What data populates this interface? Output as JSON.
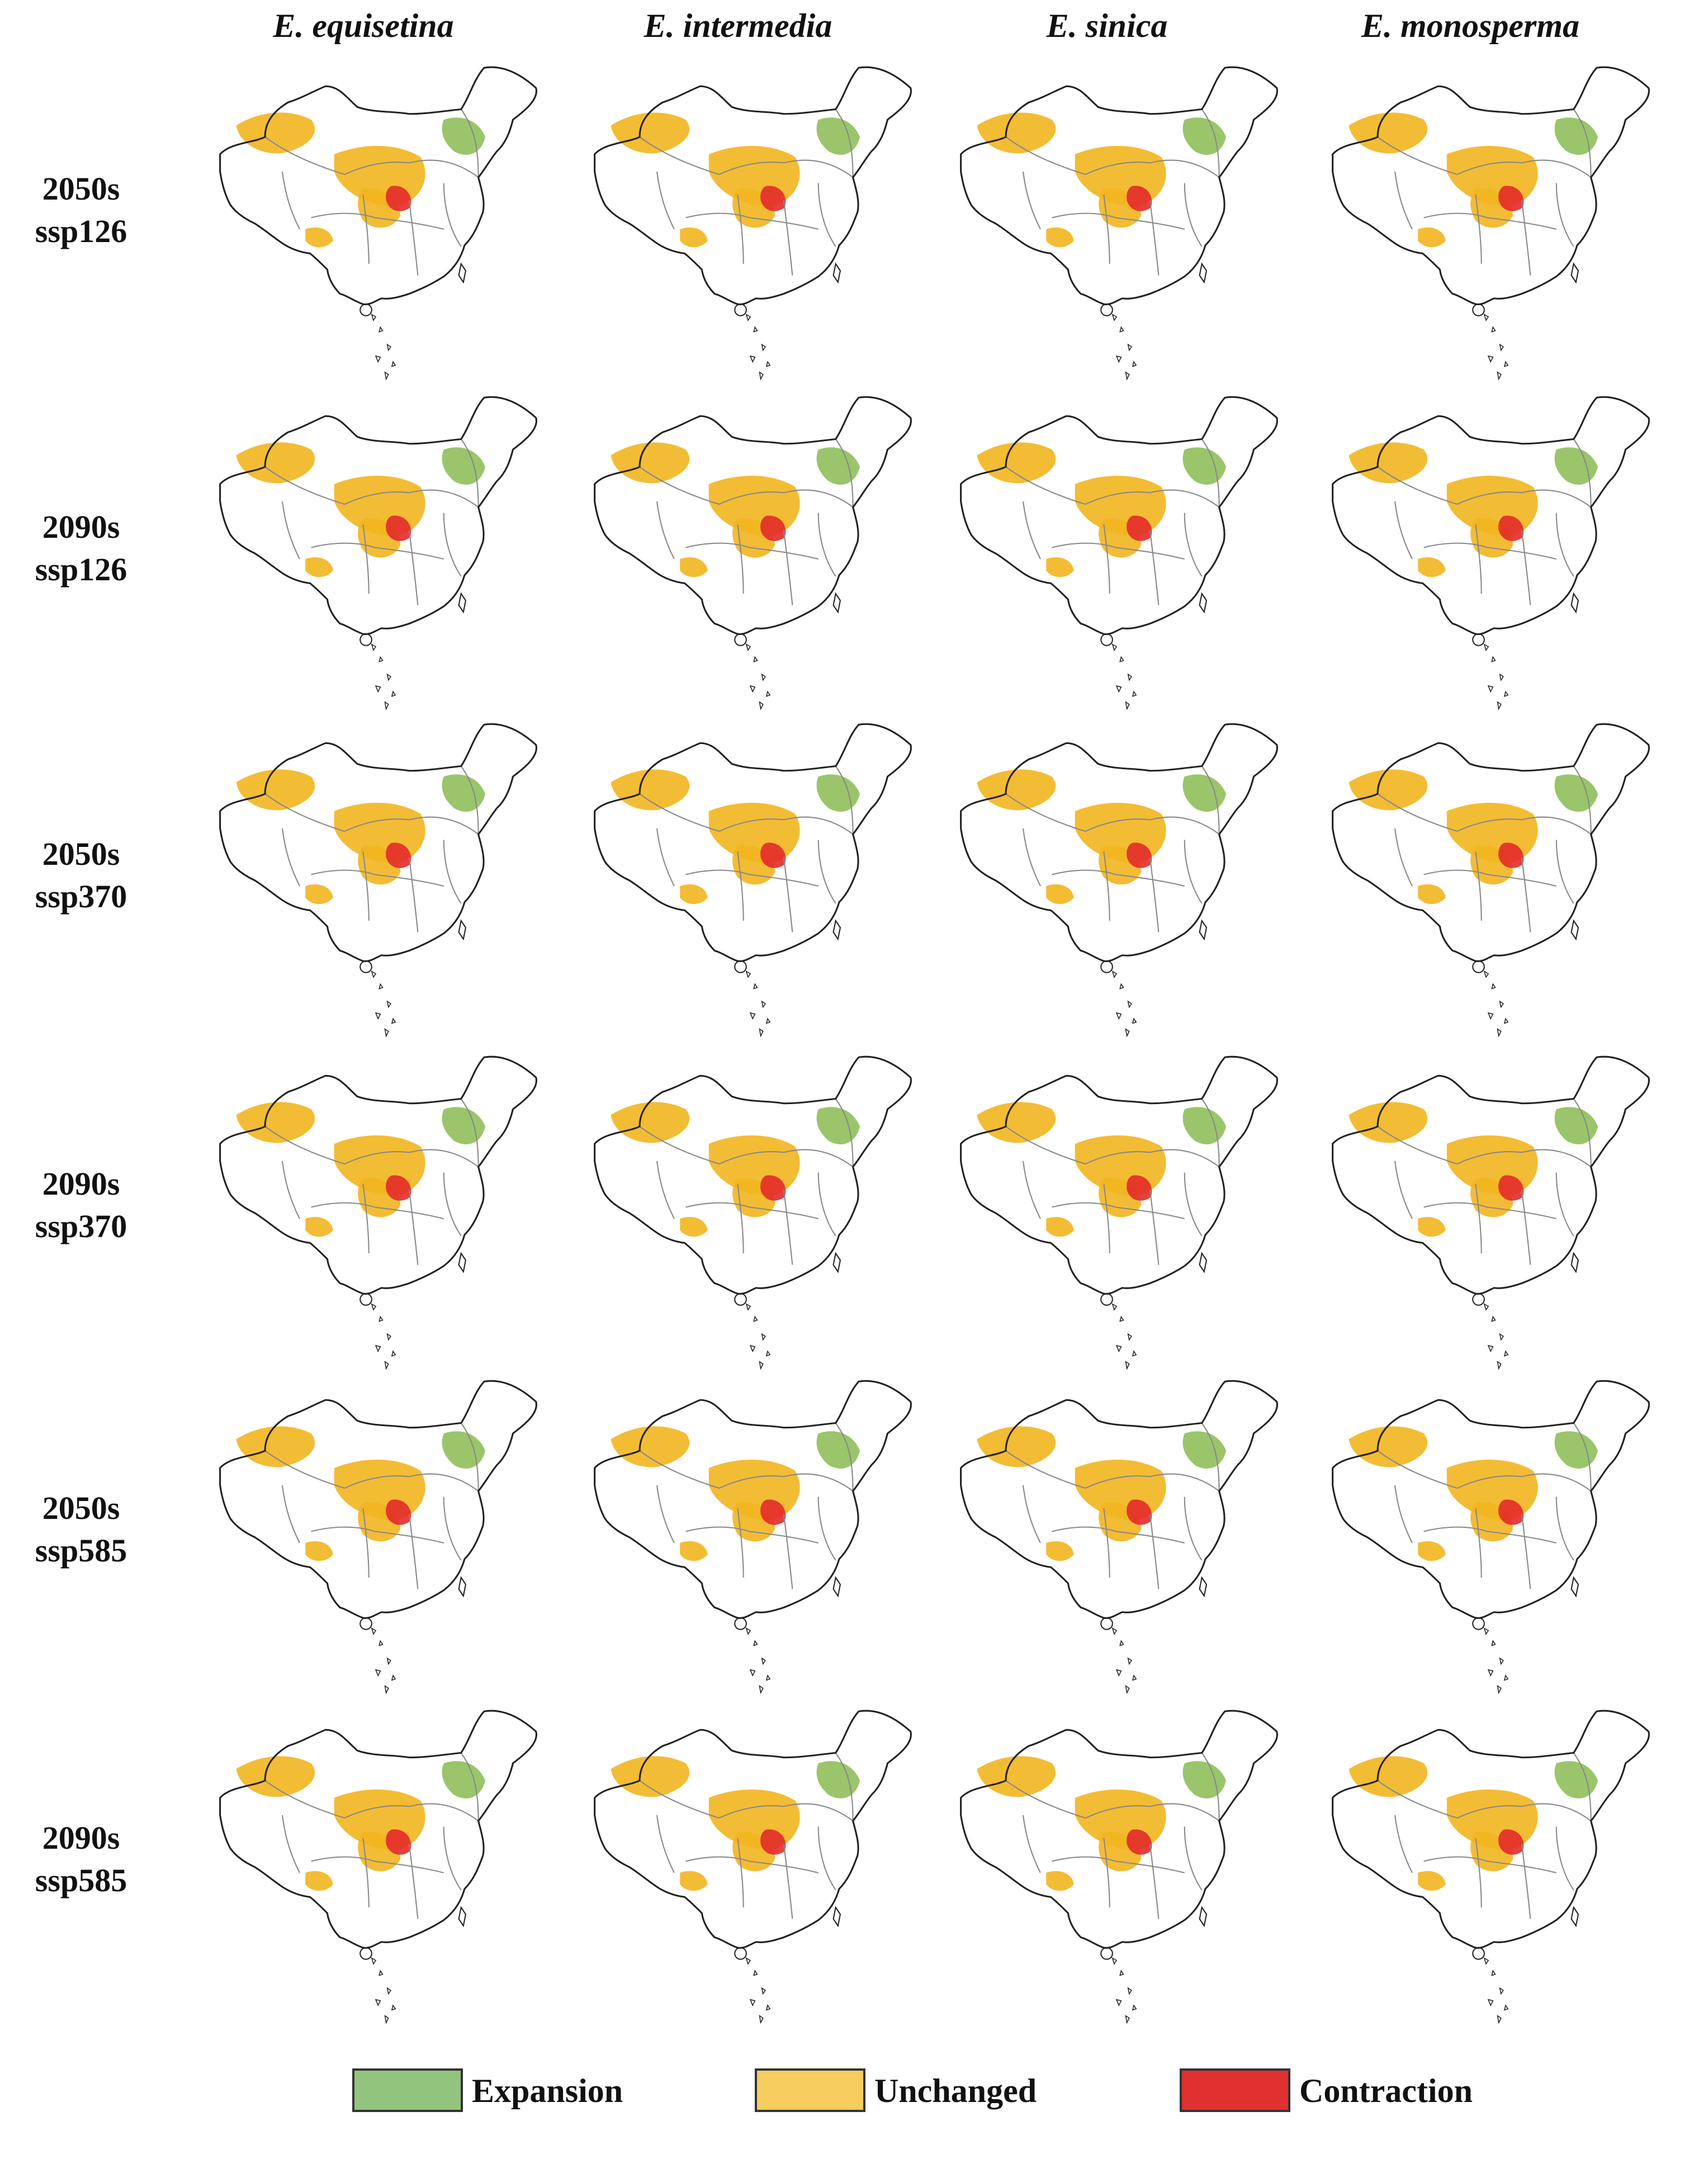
{
  "figure": {
    "species_columns": [
      "E. equisetina",
      "E. intermedia",
      "E. sinica",
      "E. monosperma"
    ],
    "scenario_rows": [
      {
        "period": "2050s",
        "ssp": "ssp126"
      },
      {
        "period": "2090s",
        "ssp": "ssp126"
      },
      {
        "period": "2050s",
        "ssp": "ssp370"
      },
      {
        "period": "2090s",
        "ssp": "ssp370"
      },
      {
        "period": "2050s",
        "ssp": "ssp585"
      },
      {
        "period": "2090s",
        "ssp": "ssp585"
      }
    ]
  },
  "legend": {
    "items": [
      {
        "label": "Expansion",
        "color": "#93c47d"
      },
      {
        "label": "Unchanged",
        "color": "#f6cc5e"
      },
      {
        "label": "Contraction",
        "color": "#e03030"
      }
    ]
  },
  "colors": {
    "expansion": "#8fbf5a",
    "unchanged": "#f2b51f",
    "contraction": "#e32a2a",
    "outline": "#222222",
    "province_lines": "#888888"
  }
}
